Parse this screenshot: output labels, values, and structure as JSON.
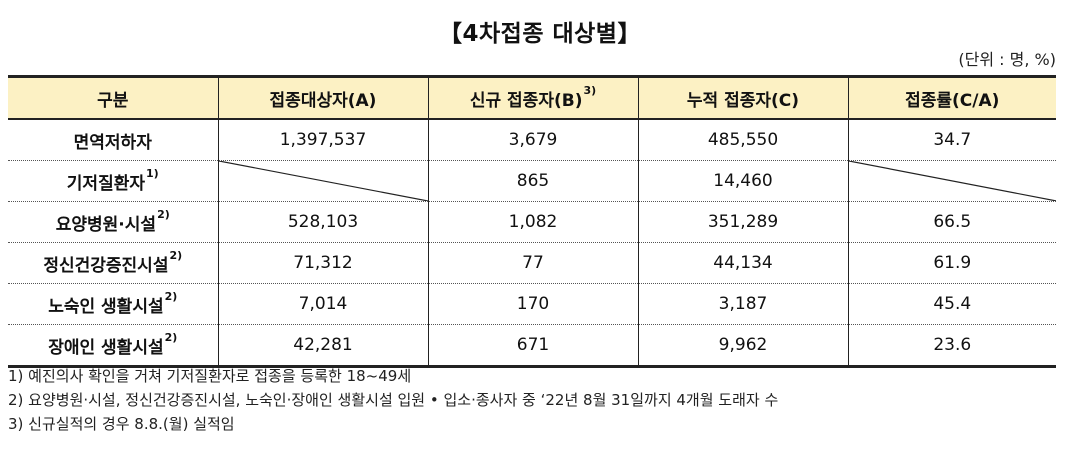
{
  "title": "【4차접종 대상별】",
  "unit": "(단위 : 명, %)",
  "table": {
    "headers": [
      {
        "text": "구분",
        "sup": ""
      },
      {
        "text": "접종대상자(A)",
        "sup": ""
      },
      {
        "text": "신규 접종자(B)",
        "sup": "3)"
      },
      {
        "text": "누적 접종자(C)",
        "sup": ""
      },
      {
        "text": "접종률(C/A)",
        "sup": ""
      }
    ],
    "rows": [
      {
        "label": "면역저하자",
        "sup": "",
        "cells": [
          "1,397,537",
          "3,679",
          "485,550",
          "34.7"
        ]
      },
      {
        "label": "기저질환자",
        "sup": "1)",
        "cells": [
          "",
          "865",
          "14,460",
          ""
        ]
      },
      {
        "label": "요양병원·시설",
        "sup": "2)",
        "cells": [
          "528,103",
          "1,082",
          "351,289",
          "66.5"
        ]
      },
      {
        "label": "정신건강증진시설",
        "sup": "2)",
        "cells": [
          "71,312",
          "77",
          "44,134",
          "61.9"
        ]
      },
      {
        "label": "노숙인 생활시설",
        "sup": "2)",
        "cells": [
          "7,014",
          "170",
          "3,187",
          "45.4"
        ]
      },
      {
        "label": "장애인 생활시설",
        "sup": "2)",
        "cells": [
          "42,281",
          "671",
          "9,962",
          "23.6"
        ]
      }
    ]
  },
  "notes": [
    "1) 예진의사 확인을 거쳐 기저질환자로 접종을 등록한 18~49세",
    "2) 요양병원·시설, 정신건강증진시설, 노숙인·장애인 생활시설 입원 • 입소·종사자 중 ‘22년 8월 31일까지 4개월 도래자 수",
    "3) 신규실적의 경우 8.8.(월) 실적임"
  ],
  "colors": {
    "header_bg": "#fcf1c4",
    "rule": "#222222"
  }
}
